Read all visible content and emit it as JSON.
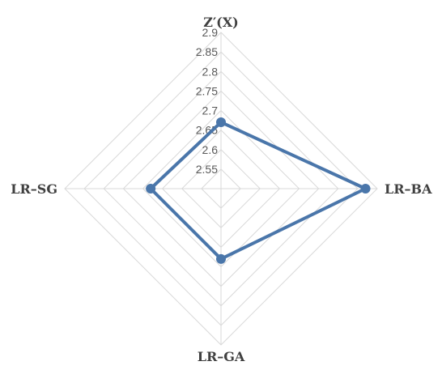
{
  "chart_data": {
    "type": "radar",
    "axes": [
      "Z′(X)",
      "LR–BA",
      "LR–GA",
      "LR–SG"
    ],
    "ticks": [
      "2.55",
      "2.6",
      "2.65",
      "2.7",
      "2.75",
      "2.8",
      "2.85",
      "2.9"
    ],
    "range": [
      2.5,
      2.9
    ],
    "grid": true,
    "legend": "none",
    "series": [
      {
        "values": [
          2.67,
          2.87,
          2.68,
          2.68
        ],
        "color": "#4a76aa"
      }
    ]
  }
}
